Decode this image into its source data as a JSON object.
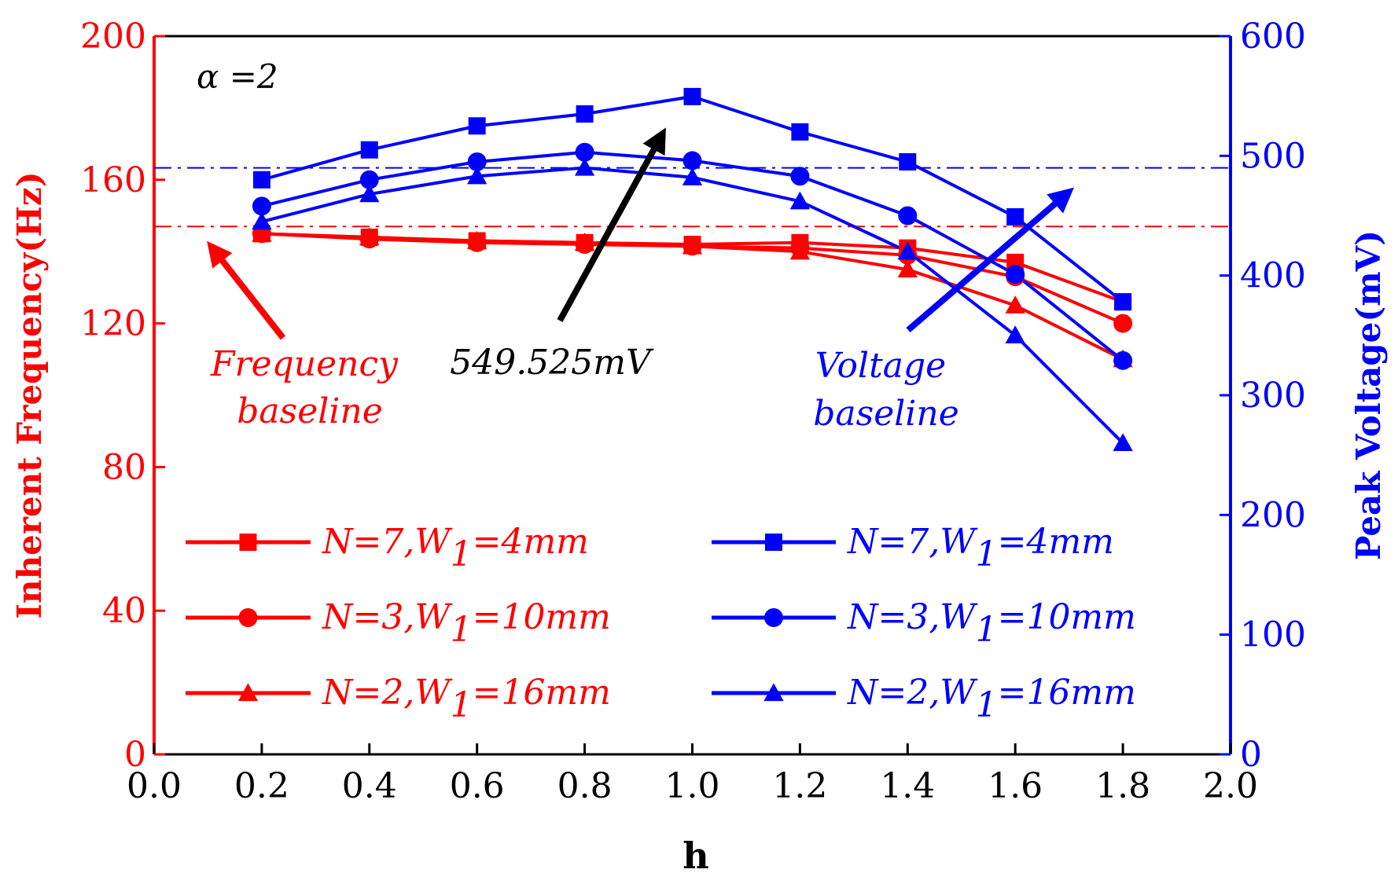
{
  "chart_data": {
    "type": "line",
    "xlabel": "h",
    "ylabel_left": "Inherent Frequency(Hz)",
    "ylabel_right": "Peak Voltage(mV)",
    "xlim": [
      0.0,
      2.0
    ],
    "ylim_left": [
      0,
      200
    ],
    "ylim_right": [
      0,
      600
    ],
    "xticks": [
      "0.0",
      "0.2",
      "0.4",
      "0.6",
      "0.8",
      "1.0",
      "1.2",
      "1.4",
      "1.6",
      "1.8",
      "2.0"
    ],
    "yticks_left": [
      "0",
      "40",
      "80",
      "120",
      "160",
      "200"
    ],
    "yticks_right": [
      "0",
      "100",
      "200",
      "300",
      "400",
      "500",
      "600"
    ],
    "x": [
      0.2,
      0.4,
      0.6,
      0.8,
      1.0,
      1.2,
      1.4,
      1.6,
      1.8
    ],
    "colors": {
      "frequency": "#ff0000",
      "voltage": "#0000ff",
      "annotation": "#000000"
    },
    "series": [
      {
        "name": "N=7,W1=4mm",
        "axis": "left",
        "marker": "square",
        "color": "#ff0000",
        "values": [
          145,
          144,
          143,
          142.5,
          142,
          142.5,
          141,
          137,
          126
        ]
      },
      {
        "name": "N=3,W1=10mm",
        "axis": "left",
        "marker": "circle",
        "color": "#ff0000",
        "values": [
          145,
          143.5,
          142.5,
          142,
          141.5,
          141,
          139,
          133,
          120
        ]
      },
      {
        "name": "N=2,W1=16mm",
        "axis": "left",
        "marker": "triangle",
        "color": "#ff0000",
        "values": [
          145,
          144,
          143,
          142.5,
          141.5,
          140,
          135,
          125,
          110
        ]
      },
      {
        "name": "N=7,W1=4mm",
        "axis": "right",
        "marker": "square",
        "color": "#0000ff",
        "values": [
          480,
          505,
          525,
          535,
          549.525,
          520,
          495,
          449,
          378
        ]
      },
      {
        "name": "N=3,W1=10mm",
        "axis": "right",
        "marker": "circle",
        "color": "#0000ff",
        "values": [
          458,
          480,
          495,
          503,
          496,
          483,
          450,
          401,
          329
        ]
      },
      {
        "name": "N=2,W1=16mm",
        "axis": "right",
        "marker": "triangle",
        "color": "#0000ff",
        "values": [
          445,
          468,
          483,
          490,
          482,
          462,
          420,
          350,
          260
        ]
      }
    ],
    "baselines": {
      "frequency": {
        "axis": "left",
        "value": 147,
        "label_line1": "Frequency",
        "label_line2": "baseline"
      },
      "voltage": {
        "axis": "right",
        "value": 490,
        "label_line1": "Voltage",
        "label_line2": "baseline"
      }
    },
    "annotations": {
      "alpha_symbol": "α",
      "alpha_value": "=2",
      "peak_label": "549.525mV"
    },
    "legend": {
      "placement": "bottom",
      "left_entries": [
        {
          "prefix": "N=7,W",
          "sub": "1",
          "suffix": "=4mm",
          "marker": "square"
        },
        {
          "prefix": "N=3,W",
          "sub": "1",
          "suffix": "=10mm",
          "marker": "circle"
        },
        {
          "prefix": "N=2,W",
          "sub": "1",
          "suffix": "=16mm",
          "marker": "triangle"
        }
      ],
      "right_entries": [
        {
          "prefix": "N=7,W",
          "sub": "1",
          "suffix": "=4mm",
          "marker": "square"
        },
        {
          "prefix": "N=3,W",
          "sub": "1",
          "suffix": "=10mm",
          "marker": "circle"
        },
        {
          "prefix": "N=2,W",
          "sub": "1",
          "suffix": "=16mm",
          "marker": "triangle"
        }
      ]
    },
    "grid": false
  }
}
